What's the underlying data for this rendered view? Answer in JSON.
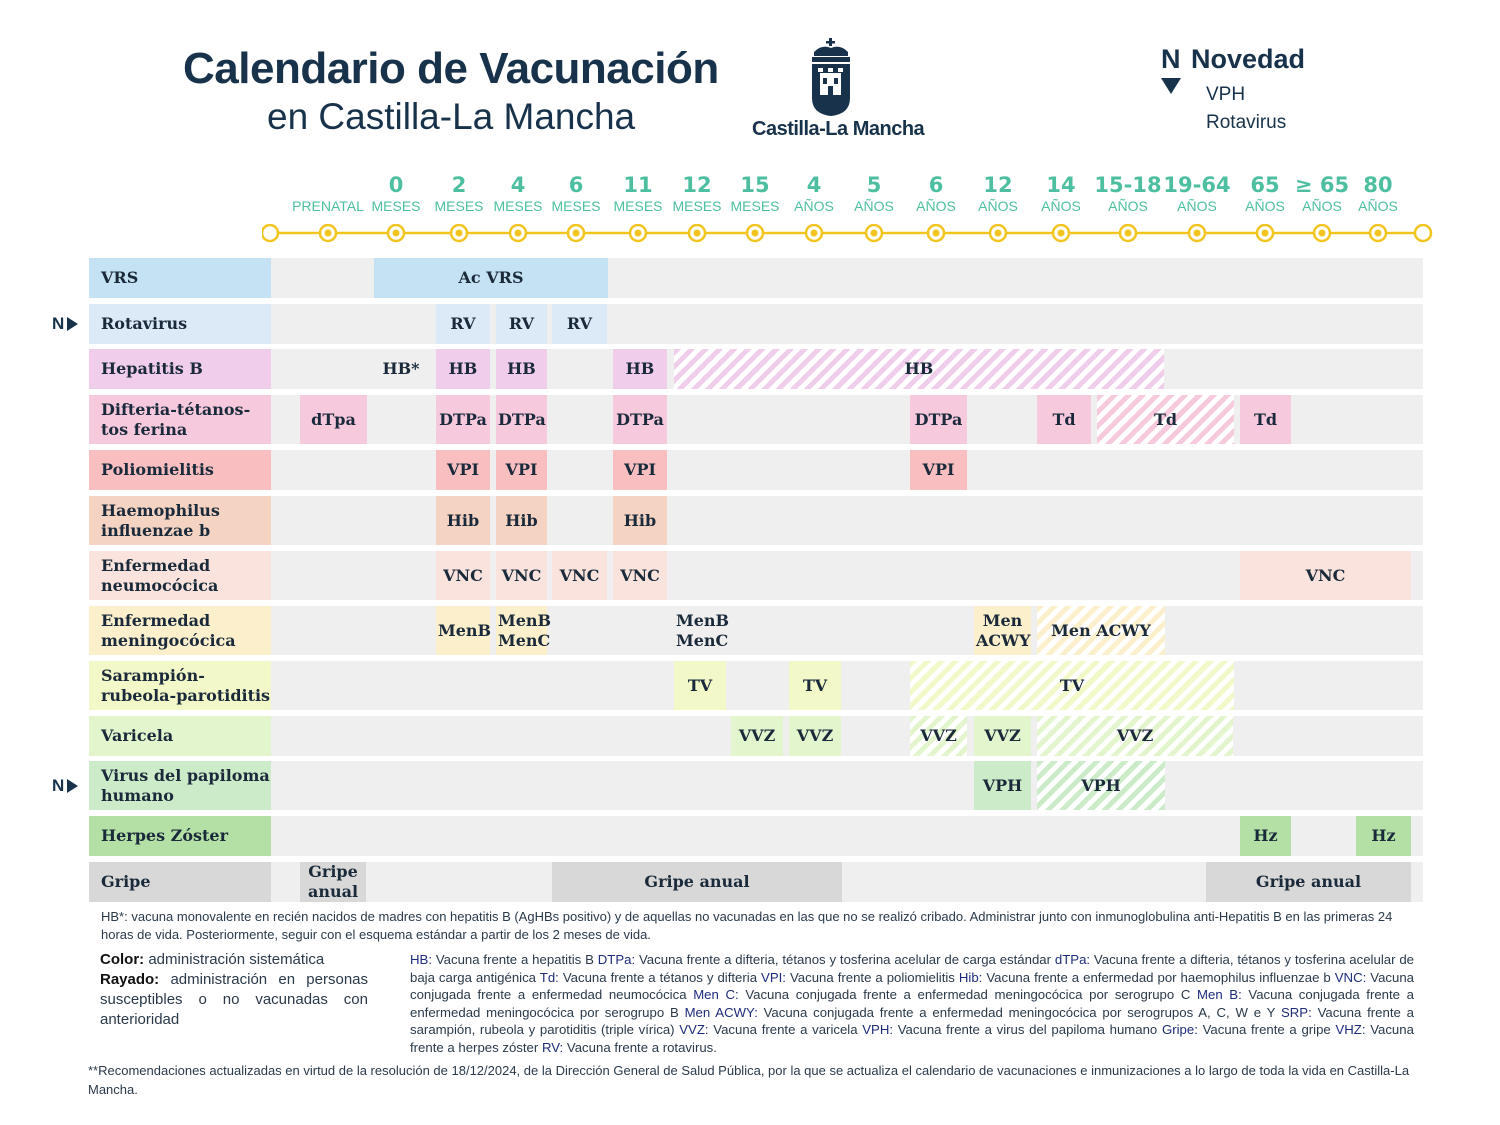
{
  "header": {
    "title_line1": "Calendario de Vacunación",
    "title_line2": "en Castilla-La Mancha",
    "logo_text": "Castilla-La Mancha",
    "novedad_marker": "N",
    "novedad_label": "Novedad",
    "novedad_items": [
      "VPH",
      "Rotavirus"
    ]
  },
  "ages": [
    {
      "num": "",
      "unit": "PRENATAL"
    },
    {
      "num": "0",
      "unit": "MESES"
    },
    {
      "num": "2",
      "unit": "MESES"
    },
    {
      "num": "4",
      "unit": "MESES"
    },
    {
      "num": "6",
      "unit": "MESES"
    },
    {
      "num": "11",
      "unit": "MESES"
    },
    {
      "num": "12",
      "unit": "MESES"
    },
    {
      "num": "15",
      "unit": "MESES"
    },
    {
      "num": "4",
      "unit": "AÑOS"
    },
    {
      "num": "5",
      "unit": "AÑOS"
    },
    {
      "num": "6",
      "unit": "AÑOS"
    },
    {
      "num": "12",
      "unit": "AÑOS"
    },
    {
      "num": "14",
      "unit": "AÑOS"
    },
    {
      "num": "15-18",
      "unit": "AÑOS"
    },
    {
      "num": "19-64",
      "unit": "AÑOS"
    },
    {
      "num": "65",
      "unit": "AÑOS"
    },
    {
      "num": "≥ 65",
      "unit": "AÑOS"
    },
    {
      "num": "80",
      "unit": "AÑOS"
    }
  ],
  "rows": [
    {
      "label": "VRS",
      "novedad": false,
      "color": "#c4e2f3",
      "blocks": [
        {
          "text": "Ac VRS",
          "hatched": false
        }
      ]
    },
    {
      "label": "Rotavirus",
      "novedad": true,
      "color": "#dce9f6",
      "blocks": [
        {
          "text": "RV"
        },
        {
          "text": "RV"
        },
        {
          "text": "RV"
        }
      ]
    },
    {
      "label": "Hepatitis B",
      "novedad": false,
      "color": "#f1cdec",
      "blocks": [
        {
          "text": "HB*"
        },
        {
          "text": "HB"
        },
        {
          "text": "HB"
        },
        {
          "text": "HB"
        },
        {
          "text": "HB",
          "hatched": true
        }
      ]
    },
    {
      "label": "Difteria-tétanos-tos ferina",
      "novedad": false,
      "color": "#f6c9dc",
      "blocks": [
        {
          "text": "dTpa"
        },
        {
          "text": "DTPa"
        },
        {
          "text": "DTPa"
        },
        {
          "text": "DTPa"
        },
        {
          "text": "DTPa"
        },
        {
          "text": "Td"
        },
        {
          "text": "Td",
          "hatched": true
        },
        {
          "text": "Td"
        }
      ]
    },
    {
      "label": "Poliomielitis",
      "novedad": false,
      "color": "#f9bfc0",
      "blocks": [
        {
          "text": "VPI"
        },
        {
          "text": "VPI"
        },
        {
          "text": "VPI"
        },
        {
          "text": "VPI"
        }
      ]
    },
    {
      "label": "Haemophilus influenzae b",
      "novedad": false,
      "color": "#f5d3c2",
      "blocks": [
        {
          "text": "Hib"
        },
        {
          "text": "Hib"
        },
        {
          "text": "Hib"
        }
      ]
    },
    {
      "label": "Enfermedad neumocócica",
      "novedad": false,
      "color": "#fae3dc",
      "blocks": [
        {
          "text": "VNC"
        },
        {
          "text": "VNC"
        },
        {
          "text": "VNC"
        },
        {
          "text": "VNC"
        },
        {
          "text": "VNC"
        }
      ]
    },
    {
      "label": "Enfermedad meningocócica",
      "novedad": false,
      "color": "#fcf0cc",
      "blocks": [
        {
          "text": "MenB"
        },
        {
          "text": "MenB MenC"
        },
        {
          "text": "MenB MenC"
        },
        {
          "text": "Men ACWY"
        },
        {
          "text": "Men ACWY",
          "hatched": true
        }
      ]
    },
    {
      "label": "Sarampión-rubeola-parotiditis",
      "novedad": false,
      "color": "#f2f8c8",
      "blocks": [
        {
          "text": "TV"
        },
        {
          "text": "TV"
        },
        {
          "text": "TV",
          "hatched": true
        }
      ]
    },
    {
      "label": "Varicela",
      "novedad": false,
      "color": "#e3f5cd",
      "blocks": [
        {
          "text": "VVZ"
        },
        {
          "text": "VVZ"
        },
        {
          "text": "VVZ",
          "hatched": true
        },
        {
          "text": "VVZ"
        },
        {
          "text": "VVZ",
          "hatched": true
        }
      ]
    },
    {
      "label": "Virus del papiloma humano",
      "novedad": true,
      "color": "#ccecc9",
      "blocks": [
        {
          "text": "VPH"
        },
        {
          "text": "VPH",
          "hatched": true
        }
      ]
    },
    {
      "label": "Herpes Zóster",
      "novedad": false,
      "color": "#b4e0a5",
      "blocks": [
        {
          "text": "Hz"
        },
        {
          "text": "Hz"
        }
      ]
    },
    {
      "label": "Gripe",
      "novedad": false,
      "color": "#d8d8d8",
      "blocks": [
        {
          "text": "Gripe anual"
        },
        {
          "text": "Gripe anual"
        },
        {
          "text": "Gripe anual"
        }
      ]
    }
  ],
  "footnote_hb": "HB*: vacuna monovalente en recién nacidos de madres con hepatitis B (AgHBs positivo) y de aquellas no vacunadas en las que no se realizó cribado. Administrar junto con inmunoglobulina anti-Hepatitis B en las primeras 24 horas de vida. Posteriormente, seguir con el esquema estándar a partir de los 2 meses de vida.",
  "legend": {
    "color_term": "Color:",
    "color_desc": "administración sistemática",
    "hatched_term": "Rayado:",
    "hatched_desc": "administración en personas susceptibles o no vacunadas con anterioridad"
  },
  "glossary": [
    {
      "term": "HB:",
      "desc": "Vacuna frente a hepatitis B"
    },
    {
      "term": "DTPa:",
      "desc": "Vacuna frente a difteria, tétanos y tosferina acelular de carga estándar"
    },
    {
      "term": "dTPa:",
      "desc": "Vacuna frente a difteria, tétanos y tosferina acelular de baja carga antigénica"
    },
    {
      "term": "Td:",
      "desc": "Vacuna frente a tétanos y difteria"
    },
    {
      "term": "VPI:",
      "desc": "Vacuna frente a poliomielitis"
    },
    {
      "term": "Hib:",
      "desc": "Vacuna frente a enfermedad por haemophilus influenzae b"
    },
    {
      "term": "VNC:",
      "desc": "Vacuna conjugada frente a enfermedad neumocócica"
    },
    {
      "term": "Men C:",
      "desc": "Vacuna conjugada frente a enfermedad meningocócica por serogrupo C"
    },
    {
      "term": "Men B:",
      "desc": "Vacuna conjugada frente a enfermedad meningocócica por serogrupo B"
    },
    {
      "term": "Men ACWY:",
      "desc": "Vacuna conjugada frente a enfermedad meningocócica por serogrupos A, C, W e Y"
    },
    {
      "term": "SRP:",
      "desc": "Vacuna frente a sarampión, rubeola y parotiditis (triple vírica)"
    },
    {
      "term": "VVZ:",
      "desc": "Vacuna frente a varicela"
    },
    {
      "term": "VPH:",
      "desc": "Vacuna frente a virus del papiloma humano"
    },
    {
      "term": "Gripe:",
      "desc": "Vacuna frente a gripe"
    },
    {
      "term": "VHZ:",
      "desc": "Vacuna frente a herpes zóster"
    },
    {
      "term": "RV:",
      "desc": "Vacuna frente a rotavirus."
    }
  ],
  "footer": "**Recomendaciones actualizadas en virtud de la resolución de 18/12/2024, de la Dirección General de Salud Pública, por la que se actualiza el calendario de vacunaciones e inmunizaciones a lo largo de toda la vida en Castilla-La Mancha."
}
